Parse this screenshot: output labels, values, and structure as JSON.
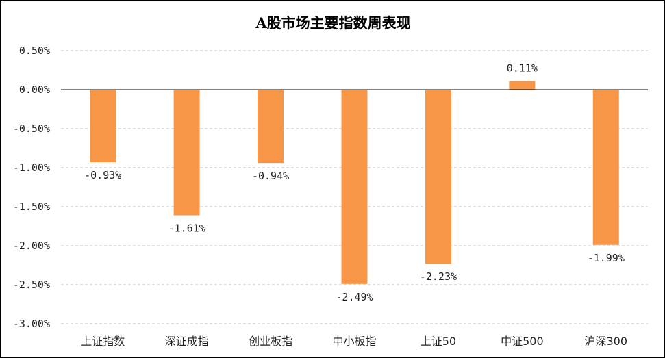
{
  "chart_data": {
    "type": "bar",
    "title": "A股市场主要指数周表现",
    "categories": [
      "上证指数",
      "深证成指",
      "创业板指",
      "中小板指",
      "上证50",
      "中证500",
      "沪深300"
    ],
    "values": [
      -0.93,
      -1.61,
      -0.94,
      -2.49,
      -2.23,
      0.11,
      -1.99
    ],
    "data_labels": [
      "-0.93%",
      "-1.61%",
      "-0.94%",
      "-2.49%",
      "-2.23%",
      "0.11%",
      "-1.99%"
    ],
    "ylim": [
      -3.0,
      0.5
    ],
    "yticks": [
      0.5,
      0.0,
      -0.5,
      -1.0,
      -1.5,
      -2.0,
      -2.5,
      -3.0
    ],
    "ytick_labels": [
      "0.50%",
      "0.00%",
      "-0.50%",
      "-1.00%",
      "-1.50%",
      "-2.00%",
      "-2.50%",
      "-3.00%"
    ],
    "xlabel": "",
    "ylabel": "",
    "grid": true,
    "legend": "none",
    "colors": {
      "bar": "#F79646",
      "grid": "#BFBFBF",
      "axis": "#000000"
    }
  }
}
